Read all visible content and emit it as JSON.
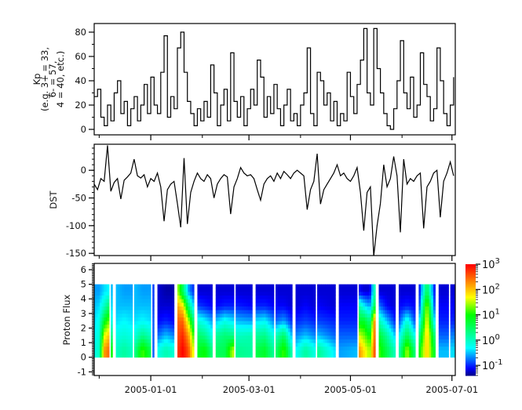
{
  "chart_data": {
    "type": "multi-panel",
    "x_axis": {
      "range": [
        "2004-11-28",
        "2005-07-03"
      ],
      "major_ticks": [
        "2005-01-01",
        "2005-03-01",
        "2005-05-01",
        "2005-07-01"
      ],
      "major_tick_labels": [
        "2005-01-01",
        "2005-03-01",
        "2005-05-01",
        "2005-07-01"
      ],
      "minor_ticks": [
        "2004-12-01",
        "2005-02-01",
        "2005-04-01",
        "2005-06-01"
      ]
    },
    "time": [
      "2004-11-28",
      "2004-11-30",
      "2004-12-02",
      "2004-12-04",
      "2004-12-06",
      "2004-12-08",
      "2004-12-10",
      "2004-12-12",
      "2004-12-14",
      "2004-12-16",
      "2004-12-18",
      "2004-12-20",
      "2004-12-22",
      "2004-12-24",
      "2004-12-26",
      "2004-12-28",
      "2004-12-30",
      "2005-01-01",
      "2005-01-03",
      "2005-01-05",
      "2005-01-07",
      "2005-01-09",
      "2005-01-11",
      "2005-01-13",
      "2005-01-15",
      "2005-01-17",
      "2005-01-19",
      "2005-01-21",
      "2005-01-23",
      "2005-01-25",
      "2005-01-27",
      "2005-01-29",
      "2005-01-31",
      "2005-02-02",
      "2005-02-04",
      "2005-02-06",
      "2005-02-08",
      "2005-02-10",
      "2005-02-12",
      "2005-02-14",
      "2005-02-16",
      "2005-02-18",
      "2005-02-20",
      "2005-02-22",
      "2005-02-24",
      "2005-02-26",
      "2005-02-28",
      "2005-03-02",
      "2005-03-04",
      "2005-03-06",
      "2005-03-08",
      "2005-03-10",
      "2005-03-12",
      "2005-03-14",
      "2005-03-16",
      "2005-03-18",
      "2005-03-20",
      "2005-03-22",
      "2005-03-24",
      "2005-03-26",
      "2005-03-28",
      "2005-03-30",
      "2005-04-01",
      "2005-04-03",
      "2005-04-05",
      "2005-04-07",
      "2005-04-09",
      "2005-04-11",
      "2005-04-13",
      "2005-04-15",
      "2005-04-17",
      "2005-04-19",
      "2005-04-21",
      "2005-04-23",
      "2005-04-25",
      "2005-04-27",
      "2005-04-29",
      "2005-05-01",
      "2005-05-03",
      "2005-05-05",
      "2005-05-07",
      "2005-05-09",
      "2005-05-11",
      "2005-05-13",
      "2005-05-15",
      "2005-05-17",
      "2005-05-19",
      "2005-05-21",
      "2005-05-23",
      "2005-05-25",
      "2005-05-27",
      "2005-05-29",
      "2005-05-31",
      "2005-06-02",
      "2005-06-04",
      "2005-06-06",
      "2005-06-08",
      "2005-06-10",
      "2005-06-12",
      "2005-06-14",
      "2005-06-16",
      "2005-06-18",
      "2005-06-20",
      "2005-06-22",
      "2005-06-24",
      "2005-06-26",
      "2005-06-28",
      "2005-06-30",
      "2005-07-02"
    ],
    "panels": [
      {
        "type": "line",
        "ylabel_lines": [
          "Kp",
          "(e.g. 3+ = 33,",
          "6- = 57,",
          "4 = 40, etc.)"
        ],
        "ylim": [
          -4.5,
          87.1
        ],
        "yticks": [
          0,
          20,
          40,
          60,
          80
        ],
        "yticks_minor_step": 10,
        "line_color": "#000000",
        "y": [
          27,
          33,
          10,
          3,
          20,
          7,
          30,
          40,
          13,
          23,
          3,
          17,
          27,
          7,
          20,
          37,
          13,
          43,
          20,
          13,
          47,
          77,
          10,
          27,
          17,
          67,
          80,
          47,
          23,
          13,
          3,
          17,
          7,
          23,
          10,
          53,
          30,
          3,
          20,
          33,
          7,
          63,
          23,
          10,
          27,
          3,
          17,
          33,
          20,
          57,
          43,
          10,
          27,
          13,
          37,
          17,
          3,
          20,
          33,
          7,
          13,
          3,
          20,
          30,
          67,
          13,
          3,
          47,
          40,
          20,
          30,
          7,
          23,
          3,
          13,
          7,
          47,
          27,
          13,
          37,
          57,
          83,
          30,
          20,
          83,
          50,
          30,
          13,
          3,
          0,
          17,
          40,
          73,
          30,
          17,
          43,
          10,
          20,
          63,
          37,
          27,
          7,
          17,
          67,
          40,
          13,
          3,
          20,
          43
        ]
      },
      {
        "type": "line",
        "ylabel_lines": [
          "DST"
        ],
        "ylim": [
          -154,
          47
        ],
        "yticks": [
          -150,
          -100,
          -50,
          0
        ],
        "yticks_minor_step": 10,
        "line_color": "#000000",
        "y": [
          -25,
          -35,
          -15,
          -20,
          45,
          -38,
          -22,
          -15,
          -52,
          -18,
          -12,
          -5,
          20,
          -10,
          -14,
          -8,
          -30,
          -15,
          -20,
          -5,
          -30,
          -92,
          -35,
          -25,
          -20,
          -60,
          -103,
          22,
          -97,
          -40,
          -20,
          -5,
          -15,
          -20,
          -8,
          -15,
          -50,
          -25,
          -15,
          -8,
          -12,
          -79,
          -30,
          -15,
          5,
          -5,
          -10,
          -8,
          -15,
          -35,
          -54,
          -25,
          -15,
          -10,
          -20,
          -5,
          -15,
          -2,
          -8,
          -15,
          -5,
          0,
          -5,
          -10,
          -71,
          -35,
          -20,
          30,
          -61,
          -35,
          -25,
          -15,
          -5,
          10,
          -10,
          -5,
          -15,
          -20,
          -10,
          5,
          -40,
          -109,
          -40,
          -30,
          -155,
          -100,
          -60,
          10,
          -30,
          -15,
          25,
          -10,
          -112,
          20,
          -25,
          -15,
          -20,
          -10,
          -5,
          -105,
          -30,
          -20,
          -5,
          0,
          -85,
          -20,
          -5,
          15,
          -10
        ]
      },
      {
        "type": "heatmap",
        "ylabel_lines": [
          "Proton Flux"
        ],
        "ylim": [
          -1.25,
          6.43
        ],
        "yticks": [
          -1,
          0,
          1,
          2,
          3,
          4,
          5,
          6
        ],
        "yticks_minor_step": 0.1,
        "y_bins": [
          0,
          1,
          2,
          3,
          4,
          5
        ],
        "segments": [
          {
            "start": "2004-11-28",
            "end": "2004-12-07",
            "profiles": [
              [
                -0.2,
                -0.3,
                -0.4,
                -0.5,
                -0.6
              ],
              [
                0,
                -0.1,
                -0.2,
                -0.4,
                -0.6
              ],
              [
                2.2,
                1.6,
                0.8,
                0,
                -0.4
              ],
              [
                2.5,
                2.0,
                1.3,
                0.5,
                -0.3
              ]
            ]
          },
          {
            "start": "2004-12-08",
            "end": "2004-12-09",
            "profiles": [
              [
                1.0,
                0.3,
                -0.2,
                -0.4,
                -0.5
              ]
            ]
          },
          {
            "start": "2004-12-11",
            "end": "2004-12-21",
            "profiles": [
              [
                0,
                -0.2,
                -0.4,
                -0.5,
                -0.5
              ],
              [
                0.2,
                -0.1,
                -0.3,
                -0.5,
                -0.6
              ],
              [
                0,
                -0.2,
                -0.4,
                -0.5,
                -0.6
              ]
            ]
          },
          {
            "start": "2004-12-22",
            "end": "2005-01-01",
            "profiles": [
              [
                0.2,
                -0.2,
                -0.4,
                -0.5,
                -0.5
              ],
              [
                1.2,
                0.3,
                -0.3,
                -0.5,
                -0.6
              ],
              [
                0.6,
                0,
                -0.4,
                -0.5,
                -0.6
              ]
            ]
          },
          {
            "start": "2005-01-02",
            "end": "2005-01-03",
            "profiles": [
              [
                -0.8,
                -0.8,
                -0.8,
                -0.9,
                -0.9
              ]
            ]
          },
          {
            "start": "2005-01-05",
            "end": "2005-01-15",
            "profiles": [
              [
                -0.2,
                -0.8,
                -1.1,
                -1.2,
                -1.2
              ],
              [
                0.1,
                -0.5,
                -1.0,
                -1.2,
                -1.3
              ],
              [
                -0.1,
                -0.7,
                -1.1,
                -1.2,
                -1.3
              ]
            ]
          },
          {
            "start": "2005-01-17",
            "end": "2005-01-27",
            "profiles": [
              [
                2.7,
                2.6,
                2.5,
                2.2,
                1.5
              ],
              [
                3.0,
                2.8,
                2.5,
                1.8,
                0.5
              ],
              [
                2.6,
                2.2,
                1.5,
                0.5,
                -0.6
              ],
              [
                1.5,
                1.0,
                0.3,
                -0.5,
                -1.0
              ]
            ]
          },
          {
            "start": "2005-01-29",
            "end": "2005-02-07",
            "profiles": [
              [
                0.8,
                0.5,
                -0.1,
                -0.9,
                -1.2
              ],
              [
                1.0,
                0.3,
                -0.3,
                -1.0,
                -1.2
              ],
              [
                0.3,
                -0.2,
                -0.6,
                -1.1,
                -1.2
              ]
            ]
          },
          {
            "start": "2005-02-09",
            "end": "2005-02-20",
            "profiles": [
              [
                0.5,
                0.2,
                -0.5,
                -1.1,
                -1.2
              ],
              [
                0.6,
                0.4,
                -0.2,
                -1.0,
                -1.2
              ],
              [
                1.6,
                0.3,
                -0.4,
                -1.0,
                -1.2
              ]
            ]
          },
          {
            "start": "2005-02-21",
            "end": "2005-03-03",
            "profiles": [
              [
                0.3,
                0,
                -0.5,
                -1.0,
                -1.2
              ],
              [
                0.2,
                0.1,
                -0.6,
                -1.1,
                -1.2
              ]
            ]
          },
          {
            "start": "2005-03-05",
            "end": "2005-03-16",
            "profiles": [
              [
                0.6,
                0.2,
                -0.4,
                -1.0,
                -1.2
              ],
              [
                0.8,
                0.3,
                -0.3,
                -1.0,
                -1.2
              ],
              [
                0.2,
                -0.2,
                -0.7,
                -1.1,
                -1.2
              ]
            ]
          },
          {
            "start": "2005-03-17",
            "end": "2005-03-27",
            "profiles": [
              [
                0.4,
                0,
                -0.8,
                -1.1,
                -1.2
              ],
              [
                1.2,
                0.5,
                -0.6,
                -1.1,
                -1.2
              ],
              [
                0,
                -0.6,
                -1.0,
                -1.2,
                -1.2
              ]
            ]
          },
          {
            "start": "2005-03-29",
            "end": "2005-04-10",
            "profiles": [
              [
                -0.3,
                -0.7,
                -1.0,
                -1.2,
                -1.2
              ],
              [
                0.2,
                -0.5,
                -0.9,
                -1.1,
                -1.2
              ],
              [
                -0.2,
                -0.7,
                -1.0,
                -1.2,
                -1.2
              ]
            ]
          },
          {
            "start": "2005-04-11",
            "end": "2005-04-22",
            "profiles": [
              [
                0.3,
                -0.5,
                -0.9,
                -1.1,
                -1.2
              ],
              [
                -0.4,
                -0.8,
                -1.0,
                -1.2,
                -1.2
              ]
            ]
          },
          {
            "start": "2005-04-24",
            "end": "2005-05-05",
            "profiles": [
              [
                -0.6,
                -0.8,
                -1.0,
                -1.1,
                -1.2
              ],
              [
                -0.5,
                -0.8,
                -1.0,
                -1.1,
                -1.2
              ]
            ]
          },
          {
            "start": "2005-05-06",
            "end": "2005-05-16",
            "profiles": [
              [
                2.3,
                1.6,
                0.8,
                0.2,
                -1.1
              ],
              [
                1.8,
                1.3,
                0.8,
                -0.3,
                -1.2
              ],
              [
                1.4,
                0.9,
                0.3,
                -0.6,
                -1.2
              ],
              [
                2.8,
                2.7,
                2.6,
                0.8,
                0.3
              ]
            ]
          },
          {
            "start": "2005-05-18",
            "end": "2005-05-28",
            "profiles": [
              [
                1.2,
                0.8,
                0.1,
                -0.7,
                -1.2
              ],
              [
                0.6,
                0.2,
                -0.5,
                -1.1,
                -1.2
              ],
              [
                0,
                -0.5,
                -1.0,
                -1.2,
                -1.2
              ]
            ]
          },
          {
            "start": "2005-05-30",
            "end": "2005-06-09",
            "profiles": [
              [
                0,
                -0.4,
                -0.9,
                -1.1,
                -1.2
              ],
              [
                1.5,
                0.6,
                -0.1,
                -1.0,
                -1.2
              ],
              [
                0.3,
                -0.3,
                -0.9,
                -1.1,
                -1.2
              ]
            ]
          },
          {
            "start": "2005-06-11",
            "end": "2005-06-21",
            "profiles": [
              [
                0.8,
                0.2,
                -0.5,
                -1.1,
                -1.2
              ],
              [
                2.0,
                2.0,
                1.8,
                1.5,
                0.6
              ],
              [
                0.6,
                0.2,
                -0.6,
                -1.1,
                -1.2
              ]
            ]
          },
          {
            "start": "2005-06-23",
            "end": "2005-06-29",
            "profiles": [
              [
                -0.5,
                -0.8,
                -1.0,
                -1.1,
                -1.2
              ]
            ]
          },
          {
            "start": "2005-06-30",
            "end": "2005-07-03",
            "profiles": [
              [
                -0.4,
                -0.7,
                -1.0,
                -1.1,
                -1.2
              ]
            ]
          }
        ],
        "colorbar": {
          "scale": "log",
          "zlim_log10": [
            -1.4,
            3
          ],
          "tick_exponents": [
            3,
            2,
            1,
            0,
            -1
          ],
          "tick_labels": [
            {
              "base": "10",
              "exp": "3"
            },
            {
              "base": "10",
              "exp": "2"
            },
            {
              "base": "10",
              "exp": "1"
            },
            {
              "base": "10",
              "exp": "0"
            },
            {
              "base": "10",
              "exp": "-1"
            }
          ],
          "colormap": [
            [
              -1.4,
              "#000080"
            ],
            [
              -1.1,
              "#0000ff"
            ],
            [
              -0.3,
              "#00ffff"
            ],
            [
              1.0,
              "#00ff00"
            ],
            [
              1.7,
              "#ffff00"
            ],
            [
              3.0,
              "#ff0000"
            ]
          ]
        }
      }
    ]
  }
}
